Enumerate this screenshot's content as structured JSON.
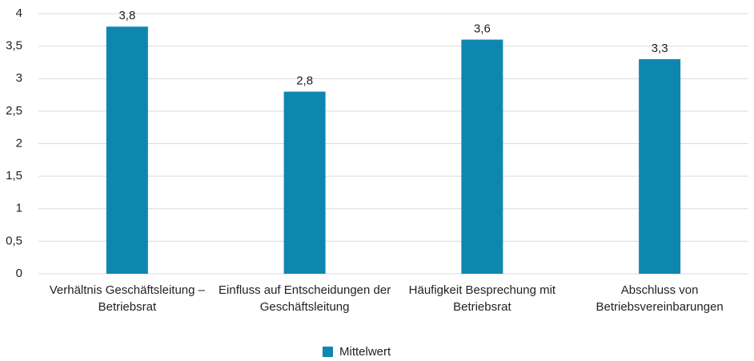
{
  "chart_data": {
    "type": "bar",
    "categories": [
      "Verhältnis Geschäftsleitung – Betriebsrat",
      "Einfluss auf Entscheidungen der Geschäftsleitung",
      "Häufigkeit Besprechung mit Betriebsrat",
      "Abschluss von Betriebsvereinbarungen"
    ],
    "series": [
      {
        "name": "Mittelwert",
        "color": "#0e87b0",
        "values": [
          3.8,
          2.8,
          3.6,
          3.3
        ],
        "value_labels": [
          "3,8",
          "2,8",
          "3,6",
          "3,3"
        ]
      }
    ],
    "ylim": [
      0,
      4
    ],
    "yticks": [
      0,
      {
        "value": 0.5,
        "label": "0,5"
      },
      1,
      {
        "value": 1.5,
        "label": "1,5"
      },
      2,
      {
        "value": 2.5,
        "label": "2,5"
      },
      3,
      {
        "value": 3.5,
        "label": "3,5"
      },
      4
    ],
    "grid": true,
    "legend": "bottom"
  }
}
